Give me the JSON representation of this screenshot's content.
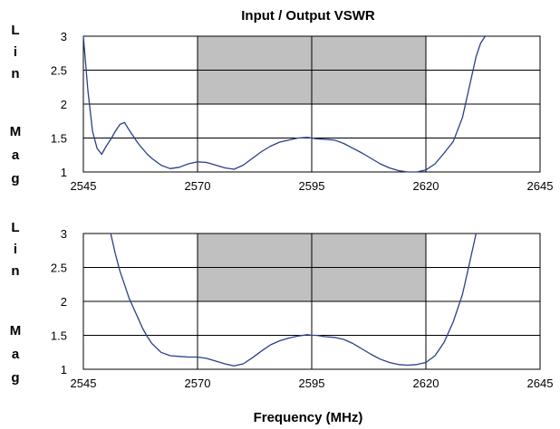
{
  "chart_data": [
    {
      "type": "line",
      "title": "Input / Output VSWR",
      "ylabel_letters": [
        "L",
        "i",
        "n",
        "M",
        "a",
        "g"
      ],
      "xlabel": "",
      "xlim": [
        2545,
        2645
      ],
      "ylim": [
        1,
        3
      ],
      "xticks": [
        2545,
        2570,
        2595,
        2620,
        2645
      ],
      "xtick_labels": [
        "2545",
        "2570",
        "2595",
        "2620",
        "2645"
      ],
      "yticks": [
        1,
        1.5,
        2,
        2.5,
        3
      ],
      "ytick_labels": [
        "1",
        "1.5",
        "2",
        "2.5",
        "3"
      ],
      "grid": true,
      "spec_region": {
        "x": [
          2570,
          2620
        ],
        "y": [
          2,
          3
        ],
        "color": "#c0c0c0"
      },
      "series": [
        {
          "color": "#2a3f8a",
          "x": [
            2545.0,
            2546.0,
            2547.0,
            2548.0,
            2549.0,
            2550.0,
            2551.0,
            2552.0,
            2553.0,
            2554.0,
            2555.0,
            2556.0,
            2557.0,
            2558.0,
            2559.0,
            2560.0,
            2562.0,
            2564.0,
            2566.0,
            2568.0,
            2570.0,
            2572.0,
            2574.0,
            2576.0,
            2578.0,
            2580.0,
            2582.0,
            2584.0,
            2586.0,
            2588.0,
            2590.0,
            2592.0,
            2594.0,
            2595.0,
            2596.0,
            2598.0,
            2600.0,
            2602.0,
            2604.0,
            2606.0,
            2608.0,
            2610.0,
            2612.0,
            2614.0,
            2616.0,
            2618.0,
            2620.0,
            2622.0,
            2624.0,
            2626.0,
            2628.0,
            2629.0,
            2630.0,
            2631.0,
            2632.0,
            2633.0
          ],
          "y": [
            3.0,
            2.2,
            1.6,
            1.35,
            1.26,
            1.38,
            1.48,
            1.6,
            1.7,
            1.73,
            1.62,
            1.52,
            1.42,
            1.34,
            1.26,
            1.2,
            1.1,
            1.05,
            1.07,
            1.12,
            1.15,
            1.14,
            1.1,
            1.06,
            1.04,
            1.1,
            1.2,
            1.3,
            1.38,
            1.44,
            1.47,
            1.5,
            1.51,
            1.5,
            1.49,
            1.48,
            1.47,
            1.42,
            1.35,
            1.28,
            1.2,
            1.12,
            1.06,
            1.02,
            1.0,
            1.0,
            1.03,
            1.12,
            1.28,
            1.45,
            1.8,
            2.1,
            2.4,
            2.7,
            2.9,
            3.0
          ]
        }
      ]
    },
    {
      "type": "line",
      "title": "",
      "ylabel_letters": [
        "L",
        "i",
        "n",
        "M",
        "a",
        "g"
      ],
      "xlabel": "Frequency (MHz)",
      "xlim": [
        2545,
        2645
      ],
      "ylim": [
        1,
        3
      ],
      "xticks": [
        2545,
        2570,
        2595,
        2620,
        2645
      ],
      "xtick_labels": [
        "2545",
        "2570",
        "2595",
        "2620",
        "2645"
      ],
      "yticks": [
        1,
        1.5,
        2,
        2.5,
        3
      ],
      "ytick_labels": [
        "1",
        "1.5",
        "2",
        "2.5",
        "3"
      ],
      "grid": true,
      "spec_region": {
        "x": [
          2570,
          2620
        ],
        "y": [
          2,
          3
        ],
        "color": "#c0c0c0"
      },
      "series": [
        {
          "color": "#2a3f8a",
          "x": [
            2551.0,
            2552.0,
            2553.0,
            2554.0,
            2555.0,
            2556.0,
            2557.0,
            2558.0,
            2559.0,
            2560.0,
            2562.0,
            2564.0,
            2566.0,
            2568.0,
            2570.0,
            2572.0,
            2574.0,
            2576.0,
            2578.0,
            2580.0,
            2582.0,
            2584.0,
            2586.0,
            2588.0,
            2590.0,
            2592.0,
            2594.0,
            2595.0,
            2596.0,
            2598.0,
            2600.0,
            2602.0,
            2604.0,
            2606.0,
            2608.0,
            2610.0,
            2612.0,
            2614.0,
            2616.0,
            2618.0,
            2620.0,
            2622.0,
            2624.0,
            2626.0,
            2628.0,
            2629.0,
            2630.0,
            2631.0
          ],
          "y": [
            3.0,
            2.7,
            2.45,
            2.25,
            2.05,
            1.9,
            1.75,
            1.6,
            1.48,
            1.38,
            1.25,
            1.2,
            1.19,
            1.18,
            1.18,
            1.16,
            1.12,
            1.08,
            1.05,
            1.08,
            1.17,
            1.27,
            1.36,
            1.42,
            1.46,
            1.49,
            1.51,
            1.5,
            1.5,
            1.48,
            1.47,
            1.44,
            1.38,
            1.3,
            1.22,
            1.15,
            1.1,
            1.07,
            1.06,
            1.07,
            1.1,
            1.2,
            1.4,
            1.7,
            2.1,
            2.4,
            2.7,
            3.0
          ]
        }
      ]
    }
  ]
}
